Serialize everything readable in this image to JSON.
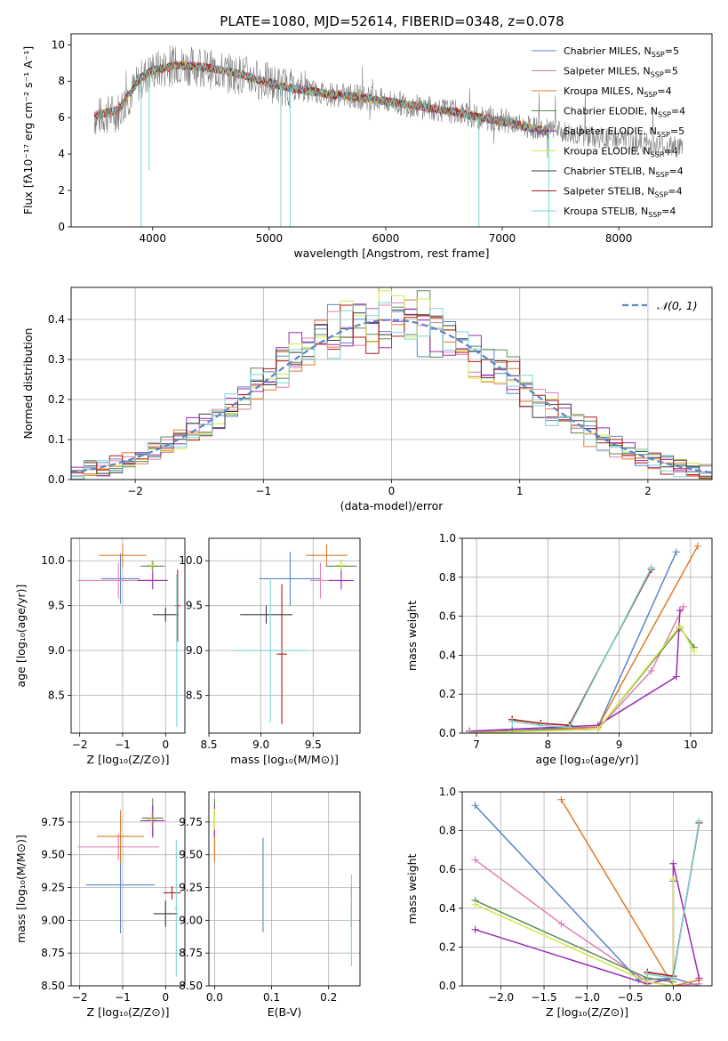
{
  "title": "PLATE=1080, MJD=52614, FIBERID=0348, z=0.078",
  "colors": {
    "Chabrier MILES": "#5b86c8",
    "Salpeter MILES": "#e07fb1",
    "Kroupa MILES": "#e07b2a",
    "Chabrier ELODIE": "#5b8a55",
    "Salpeter ELODIE": "#9b2cb4",
    "Kroupa ELODIE": "#d1ea4a",
    "Chabrier STELIB": "#3a3a3a",
    "Salpeter STELIB": "#b81818",
    "Kroupa STELIB": "#79d7d4",
    "data": "#808080",
    "gaussian": "#5b86c8"
  },
  "chart_data": [
    {
      "id": "spectrum",
      "type": "line",
      "xlabel": "wavelength [Angstrom, rest frame]",
      "ylabel": "Flux [fλ10⁻¹⁷ erg cm⁻² s⁻¹ A⁻¹]",
      "xlim": [
        3300,
        8800
      ],
      "ylim": [
        0,
        10.6
      ],
      "xticks": [
        4000,
        5000,
        6000,
        7000,
        8000
      ],
      "yticks": [
        0,
        2,
        4,
        6,
        8,
        10
      ],
      "grid": false,
      "legend": "top-right",
      "legend_entries": [
        "Chabrier MILES, N_SSP=5",
        "Salpeter MILES, N_SSP=5",
        "Kroupa MILES, N_SSP=4",
        "Chabrier ELODIE, N_SSP=4",
        "Salpeter ELODIE, N_SSP=5",
        "Kroupa ELODIE, N_SSP=4",
        "Chabrier STELIB, N_SSP=4",
        "Salpeter STELIB, N_SSP=4",
        "Kroupa STELIB, N_SSP=4"
      ],
      "data_continuum": {
        "x": [
          3500,
          3700,
          3800,
          3900,
          4000,
          4100,
          4200,
          4400,
          4600,
          4800,
          5000,
          5200,
          5500,
          5800,
          6000,
          6300,
          6600,
          6800,
          7000,
          7200,
          7400,
          7600,
          7800,
          8000,
          8200,
          8400,
          8550
        ],
        "y": [
          6.0,
          6.3,
          7.2,
          8.1,
          8.6,
          8.7,
          8.9,
          8.8,
          8.5,
          8.3,
          7.9,
          7.6,
          7.3,
          7.1,
          6.9,
          6.6,
          6.3,
          6.0,
          5.8,
          5.5,
          5.3,
          5.1,
          4.9,
          4.8,
          4.6,
          4.4,
          4.4
        ]
      },
      "model_continuum": {
        "x": [
          3500,
          3700,
          3800,
          3900,
          4000,
          4100,
          4200,
          4400,
          4600,
          4800,
          5000,
          5200,
          5500,
          5800,
          6000,
          6300,
          6600,
          6800,
          7000,
          7200,
          7400
        ],
        "y": [
          6.1,
          6.4,
          7.3,
          8.2,
          8.6,
          8.7,
          8.9,
          8.8,
          8.6,
          8.3,
          7.9,
          7.6,
          7.3,
          7.1,
          6.9,
          6.6,
          6.3,
          6.0,
          5.8,
          5.5,
          5.2
        ]
      },
      "data_noise": 0.7,
      "absorption_dips": [
        {
          "x": 3900,
          "y": 0
        },
        {
          "x": 3970,
          "y": 3.1
        },
        {
          "x": 5100,
          "y": 0
        },
        {
          "x": 5180,
          "y": 0
        },
        {
          "x": 6800,
          "y": 0
        },
        {
          "x": 7400,
          "y": 0
        }
      ]
    },
    {
      "id": "residual-distribution",
      "type": "step",
      "xlabel": "(data-model)/error",
      "ylabel": "Normed distribution",
      "xlim": [
        -2.5,
        2.5
      ],
      "ylim": [
        0,
        0.48
      ],
      "xticks": [
        -2,
        -1,
        0,
        1,
        2
      ],
      "yticks": [
        0.0,
        0.1,
        0.2,
        0.3,
        0.4
      ],
      "grid": true,
      "legend": "top-right",
      "legend_entries": [
        "𝒩(0, 1)"
      ],
      "bin_width": 0.1,
      "gaussian": {
        "mu": 0,
        "sigma": 1
      },
      "series_count": 9
    },
    {
      "id": "age-vs-Z",
      "type": "errorbar",
      "xlabel": "Z [log₁₀(Z/Z⊙)]",
      "ylabel": "age  [log₁₀(age/yr)]",
      "xlim": [
        -2.2,
        0.45
      ],
      "ylim": [
        8.08,
        10.25
      ],
      "xticks": [
        -2,
        -1,
        0
      ],
      "yticks": [
        8.5,
        9.0,
        9.5,
        10.0
      ],
      "grid": true,
      "points": [
        {
          "model": "Chabrier MILES",
          "x": -1.05,
          "xerr": 0.45,
          "y": 9.8,
          "yerr": 0.28
        },
        {
          "model": "Salpeter MILES",
          "x": -1.1,
          "xerr": 0.95,
          "y": 9.78,
          "yerr": 0.2
        },
        {
          "model": "Kroupa MILES",
          "x": -1.0,
          "xerr": 0.55,
          "y": 10.06,
          "yerr": 0.13
        },
        {
          "model": "Chabrier ELODIE",
          "x": -0.3,
          "xerr": 0.28,
          "y": 9.94,
          "yerr": 0.06
        },
        {
          "model": "Salpeter ELODIE",
          "x": -0.3,
          "xerr": 0.35,
          "y": 9.78,
          "yerr": 0.1
        },
        {
          "model": "Kroupa ELODIE",
          "x": -0.32,
          "xerr": 0.12,
          "y": 9.95,
          "yerr": 0.05
        },
        {
          "model": "Chabrier STELIB",
          "x": 0.0,
          "xerr": 0.3,
          "y": 9.4,
          "yerr": 0.08
        },
        {
          "model": "Salpeter STELIB",
          "x": 0.28,
          "xerr": 0.05,
          "y": 9.5,
          "yerr": 0.4
        },
        {
          "model": "Kroupa STELIB",
          "x": 0.26,
          "xerr": 0.05,
          "y": 9.0,
          "yerr": 0.85
        }
      ]
    },
    {
      "id": "age-vs-mass",
      "type": "errorbar",
      "xlabel": "mass [log₁₀(M/M⊙)]",
      "ylabel": "",
      "xlim": [
        8.5,
        9.95
      ],
      "ylim": [
        8.08,
        10.25
      ],
      "xticks": [
        8.5,
        9.0,
        9.5
      ],
      "yticks": [
        8.5,
        9.0,
        9.5,
        10.0
      ],
      "grid": true,
      "points": [
        {
          "model": "Chabrier MILES",
          "x": 9.28,
          "xerr": 0.3,
          "y": 9.8,
          "yerr": 0.3
        },
        {
          "model": "Salpeter MILES",
          "x": 9.57,
          "xerr": 0.1,
          "y": 9.78,
          "yerr": 0.2
        },
        {
          "model": "Kroupa MILES",
          "x": 9.63,
          "xerr": 0.2,
          "y": 10.06,
          "yerr": 0.12
        },
        {
          "model": "Chabrier ELODIE",
          "x": 9.77,
          "xerr": 0.15,
          "y": 9.94,
          "yerr": 0.07
        },
        {
          "model": "Salpeter ELODIE",
          "x": 9.77,
          "xerr": 0.12,
          "y": 9.78,
          "yerr": 0.1
        },
        {
          "model": "Kroupa ELODIE",
          "x": 9.77,
          "xerr": 0.05,
          "y": 9.95,
          "yerr": 0.05
        },
        {
          "model": "Chabrier STELIB",
          "x": 9.05,
          "xerr": 0.25,
          "y": 9.4,
          "yerr": 0.1
        },
        {
          "model": "Salpeter STELIB",
          "x": 9.2,
          "xerr": 0.05,
          "y": 8.96,
          "yerr": 0.78
        },
        {
          "model": "Kroupa STELIB",
          "x": 9.09,
          "xerr": 0.35,
          "y": 9.0,
          "yerr": 0.8
        }
      ]
    },
    {
      "id": "massweight-vs-age",
      "type": "line",
      "xlabel": "age  [log₁₀(age/yr)]",
      "ylabel": "mass weight",
      "xlim": [
        6.8,
        10.3
      ],
      "ylim": [
        0,
        1.0
      ],
      "xticks": [
        7,
        8,
        9,
        10
      ],
      "yticks": [
        0.0,
        0.2,
        0.4,
        0.6,
        0.8,
        1.0
      ],
      "grid": true,
      "series": [
        {
          "model": "Chabrier MILES",
          "x": [
            6.9,
            7.5,
            8.7,
            9.8
          ],
          "y": [
            0.0,
            0.02,
            0.03,
            0.93
          ]
        },
        {
          "model": "Salpeter MILES",
          "x": [
            6.9,
            7.5,
            8.7,
            9.45,
            9.9
          ],
          "y": [
            0.01,
            0.01,
            0.02,
            0.32,
            0.65
          ]
        },
        {
          "model": "Kroupa MILES",
          "x": [
            6.9,
            8.7,
            10.1
          ],
          "y": [
            0.0,
            0.03,
            0.96
          ]
        },
        {
          "model": "Chabrier ELODIE",
          "x": [
            6.9,
            7.5,
            8.7,
            9.85,
            10.05
          ],
          "y": [
            0.0,
            0.01,
            0.02,
            0.54,
            0.44
          ]
        },
        {
          "model": "Salpeter ELODIE",
          "x": [
            6.9,
            8.7,
            9.8,
            9.85
          ],
          "y": [
            0.01,
            0.04,
            0.29,
            0.63
          ]
        },
        {
          "model": "Kroupa ELODIE",
          "x": [
            6.9,
            8.7,
            9.85,
            10.05
          ],
          "y": [
            0.0,
            0.02,
            0.55,
            0.42
          ]
        },
        {
          "model": "Chabrier STELIB",
          "x": [
            7.5,
            7.9,
            8.3,
            9.45
          ],
          "y": [
            0.07,
            0.05,
            0.04,
            0.84
          ]
        },
        {
          "model": "Salpeter STELIB",
          "x": [
            7.5,
            7.9,
            8.3,
            9.45
          ],
          "y": [
            0.07,
            0.05,
            0.04,
            0.84
          ]
        },
        {
          "model": "Kroupa STELIB",
          "x": [
            7.5,
            7.9,
            8.3,
            9.45
          ],
          "y": [
            0.06,
            0.04,
            0.03,
            0.85
          ]
        }
      ]
    },
    {
      "id": "mass-vs-Z",
      "type": "errorbar",
      "xlabel": "Z [log₁₀(Z/Z⊙)]",
      "ylabel": "mass [log₁₀(M/M⊙)]",
      "xlim": [
        -2.2,
        0.45
      ],
      "ylim": [
        8.5,
        9.98
      ],
      "xticks": [
        -2,
        -1,
        0
      ],
      "yticks": [
        8.5,
        8.75,
        9.0,
        9.25,
        9.5,
        9.75
      ],
      "grid": true,
      "points": [
        {
          "model": "Chabrier MILES",
          "x": -1.05,
          "xerr": 0.8,
          "y": 9.27,
          "yerr": 0.37
        },
        {
          "model": "Salpeter MILES",
          "x": -1.1,
          "xerr": 0.95,
          "y": 9.56,
          "yerr": 0.1
        },
        {
          "model": "Kroupa MILES",
          "x": -1.05,
          "xerr": 0.55,
          "y": 9.64,
          "yerr": 0.2
        },
        {
          "model": "Chabrier ELODIE",
          "x": -0.3,
          "xerr": 0.25,
          "y": 9.78,
          "yerr": 0.15
        },
        {
          "model": "Salpeter ELODIE",
          "x": -0.3,
          "xerr": 0.28,
          "y": 9.76,
          "yerr": 0.12
        },
        {
          "model": "Kroupa ELODIE",
          "x": -0.32,
          "xerr": 0.12,
          "y": 9.77,
          "yerr": 0.05
        },
        {
          "model": "Chabrier STELIB",
          "x": 0.0,
          "xerr": 0.28,
          "y": 9.05,
          "yerr": 0.1
        },
        {
          "model": "Salpeter STELIB",
          "x": 0.15,
          "xerr": 0.2,
          "y": 9.21,
          "yerr": 0.05
        },
        {
          "model": "Kroupa STELIB",
          "x": 0.25,
          "xerr": 0.05,
          "y": 9.09,
          "yerr": 0.52
        }
      ]
    },
    {
      "id": "mass-vs-EBV",
      "type": "errorbar",
      "xlabel": "E(B-V)",
      "ylabel": "",
      "xlim": [
        -0.01,
        0.255
      ],
      "ylim": [
        8.5,
        9.98
      ],
      "xticks": [
        0.0,
        0.1,
        0.2
      ],
      "yticks": [
        8.5,
        8.75,
        9.0,
        9.25,
        9.5,
        9.75
      ],
      "grid": true,
      "points": [
        {
          "model": "Chabrier MILES",
          "x": 0.085,
          "xerr": 0,
          "y": 9.27,
          "yerr": 0.36
        },
        {
          "model": "Salpeter MILES",
          "x": 0.0,
          "xerr": 0,
          "y": 9.56,
          "yerr": 0.1
        },
        {
          "model": "Kroupa MILES",
          "x": 0.0,
          "xerr": 0,
          "y": 9.64,
          "yerr": 0.2
        },
        {
          "model": "Chabrier ELODIE",
          "x": 0.0,
          "xerr": 0,
          "y": 9.78,
          "yerr": 0.15
        },
        {
          "model": "Salpeter ELODIE",
          "x": 0.0,
          "xerr": 0,
          "y": 9.76,
          "yerr": 0.12
        },
        {
          "model": "Kroupa ELODIE",
          "x": 0.0,
          "xerr": 0,
          "y": 9.77,
          "yerr": 0.08
        },
        {
          "model": "Chabrier STELIB",
          "x": 0.24,
          "xerr": 0,
          "y": 9.05,
          "yerr": 0.1
        },
        {
          "model": "Salpeter STELIB",
          "x": 0.24,
          "xerr": 0,
          "y": 9.21,
          "yerr": 0.05
        },
        {
          "model": "Kroupa STELIB",
          "x": 0.24,
          "xerr": 0,
          "y": 9.0,
          "yerr": 0.35
        }
      ]
    },
    {
      "id": "massweight-vs-Z",
      "type": "line",
      "xlabel": "Z [log₁₀(Z/Z⊙)]",
      "ylabel": "mass weight",
      "xlim": [
        -2.45,
        0.45
      ],
      "ylim": [
        0,
        1.0
      ],
      "xticks": [
        -2.0,
        -1.5,
        -1.0,
        -0.5,
        0.0
      ],
      "yticks": [
        0.0,
        0.2,
        0.4,
        0.6,
        0.8,
        1.0
      ],
      "grid": true,
      "series": [
        {
          "model": "Chabrier MILES",
          "x": [
            -2.3,
            -0.4,
            0.0,
            0.3
          ],
          "y": [
            0.93,
            0.03,
            0.04,
            0.0
          ]
        },
        {
          "model": "Salpeter MILES",
          "x": [
            -2.3,
            -1.3,
            -0.3,
            0.0,
            0.3
          ],
          "y": [
            0.65,
            0.32,
            0.02,
            0.0,
            0.01
          ]
        },
        {
          "model": "Kroupa MILES",
          "x": [
            -1.3,
            0.0,
            0.3
          ],
          "y": [
            0.96,
            0.0,
            0.03
          ]
        },
        {
          "model": "Chabrier ELODIE",
          "x": [
            -2.3,
            -0.3,
            0.0,
            0.0
          ],
          "y": [
            0.44,
            0.04,
            0.02,
            0.54
          ]
        },
        {
          "model": "Salpeter ELODIE",
          "x": [
            -2.3,
            -0.3,
            0.0,
            0.0,
            0.3
          ],
          "y": [
            0.29,
            0.01,
            0.04,
            0.63,
            0.04
          ]
        },
        {
          "model": "Kroupa ELODIE",
          "x": [
            -2.3,
            -0.3,
            0.0,
            0.0
          ],
          "y": [
            0.42,
            0.02,
            0.0,
            0.55
          ]
        },
        {
          "model": "Chabrier STELIB",
          "x": [
            -0.3,
            0.0,
            0.3
          ],
          "y": [
            0.07,
            0.05,
            0.84
          ]
        },
        {
          "model": "Salpeter STELIB",
          "x": [
            -0.3,
            0.0,
            0.3
          ],
          "y": [
            0.07,
            0.05,
            0.84
          ]
        },
        {
          "model": "Kroupa STELIB",
          "x": [
            -0.3,
            0.0,
            0.3
          ],
          "y": [
            0.06,
            0.04,
            0.85
          ]
        }
      ]
    }
  ]
}
